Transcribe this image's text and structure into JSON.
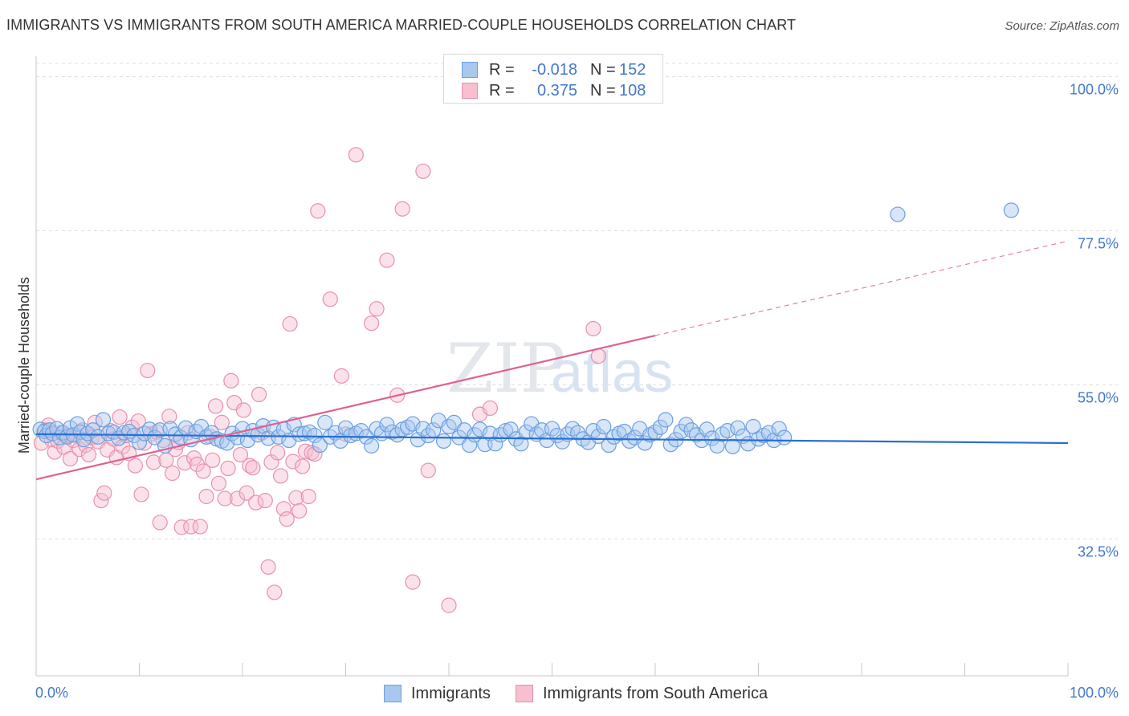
{
  "title": "IMMIGRANTS VS IMMIGRANTS FROM SOUTH AMERICA MARRIED-COUPLE HOUSEHOLDS CORRELATION CHART",
  "source": "Source: ZipAtlas.com",
  "watermark": {
    "zip": "ZIP",
    "atlas": "atlas"
  },
  "legend": {
    "r_label": "R =",
    "n_label": "N =",
    "rows": [
      {
        "r": "-0.018",
        "n": "152",
        "color": "#a8c8f0",
        "border": "#6a9fe0"
      },
      {
        "r": "0.375",
        "n": "108",
        "color": "#f7bfd0",
        "border": "#e890ac"
      }
    ]
  },
  "bottom_legend": [
    "Immigrants",
    "Immigrants from South America"
  ],
  "colors": {
    "blue_fill": "#a8c8f0",
    "blue_stroke": "#6a9fe0",
    "blue_line": "#2a6fcf",
    "pink_fill": "#f7bfd0",
    "pink_stroke": "#e890ac",
    "pink_line": "#e06090",
    "tick_text": "#4477cc",
    "grid": "#dddddd"
  },
  "chart_data": {
    "type": "scatter",
    "title": "IMMIGRANTS VS IMMIGRANTS FROM SOUTH AMERICA MARRIED-COUPLE HOUSEHOLDS CORRELATION CHART",
    "xlabel": "",
    "ylabel": "Married-couple Households",
    "xlim": [
      0,
      100
    ],
    "ylim": [
      12.5,
      103
    ],
    "x_tick_labels": [
      "0.0%",
      "100.0%"
    ],
    "y_ticks": [
      32.5,
      55.0,
      77.5,
      100.0
    ],
    "y_tick_labels": [
      "32.5%",
      "55.0%",
      "77.5%",
      "100.0%"
    ],
    "grid": true,
    "legend_placement": "top-center",
    "series": [
      {
        "name": "Immigrants",
        "r": -0.018,
        "n": 152,
        "trend": {
          "x": [
            0,
            100
          ],
          "y": [
            47.8,
            46.5
          ]
        },
        "points": [
          [
            0.4,
            48.5
          ],
          [
            0.8,
            48.2
          ],
          [
            1.0,
            47.6
          ],
          [
            1.3,
            48.4
          ],
          [
            1.6,
            47.9
          ],
          [
            2.0,
            48.6
          ],
          [
            2.3,
            47.3
          ],
          [
            2.6,
            48.0
          ],
          [
            3.0,
            47.4
          ],
          [
            3.3,
            48.7
          ],
          [
            3.6,
            47.7
          ],
          [
            4.0,
            49.3
          ],
          [
            4.3,
            48.1
          ],
          [
            4.6,
            47.0
          ],
          [
            5.0,
            47.9
          ],
          [
            5.5,
            48.4
          ],
          [
            6.0,
            47.4
          ],
          [
            6.5,
            49.9
          ],
          [
            7.0,
            47.9
          ],
          [
            7.5,
            48.1
          ],
          [
            8.0,
            47.2
          ],
          [
            8.5,
            48.0
          ],
          [
            9.0,
            48.2
          ],
          [
            9.5,
            47.6
          ],
          [
            10.0,
            46.6
          ],
          [
            10.5,
            47.9
          ],
          [
            11.0,
            48.5
          ],
          [
            11.5,
            47.3
          ],
          [
            12.0,
            48.4
          ],
          [
            12.5,
            46.1
          ],
          [
            13.0,
            48.6
          ],
          [
            13.5,
            47.8
          ],
          [
            14.0,
            47.3
          ],
          [
            14.5,
            48.7
          ],
          [
            15.0,
            47.0
          ],
          [
            15.5,
            48.2
          ],
          [
            16.0,
            48.9
          ],
          [
            16.5,
            47.4
          ],
          [
            17.0,
            48.0
          ],
          [
            17.5,
            47.1
          ],
          [
            18.0,
            46.8
          ],
          [
            18.5,
            46.5
          ],
          [
            19.0,
            47.9
          ],
          [
            19.5,
            47.3
          ],
          [
            20.0,
            48.6
          ],
          [
            20.5,
            46.9
          ],
          [
            21.0,
            48.3
          ],
          [
            21.5,
            47.7
          ],
          [
            22.0,
            49.0
          ],
          [
            22.5,
            47.2
          ],
          [
            23.0,
            48.8
          ],
          [
            23.5,
            47.4
          ],
          [
            24.0,
            48.5
          ],
          [
            24.5,
            46.9
          ],
          [
            25.0,
            49.2
          ],
          [
            25.5,
            47.8
          ],
          [
            26.0,
            47.9
          ],
          [
            26.5,
            48.1
          ],
          [
            27.0,
            47.6
          ],
          [
            27.5,
            46.2
          ],
          [
            28.0,
            49.5
          ],
          [
            28.5,
            47.4
          ],
          [
            29.0,
            48.0
          ],
          [
            29.5,
            46.8
          ],
          [
            30.0,
            48.7
          ],
          [
            30.5,
            47.6
          ],
          [
            31.0,
            47.9
          ],
          [
            31.5,
            48.3
          ],
          [
            32.0,
            47.4
          ],
          [
            32.5,
            46.1
          ],
          [
            33.0,
            48.6
          ],
          [
            33.5,
            47.9
          ],
          [
            34.0,
            49.2
          ],
          [
            34.5,
            48.1
          ],
          [
            35.0,
            47.7
          ],
          [
            35.5,
            48.5
          ],
          [
            36.0,
            48.8
          ],
          [
            36.5,
            49.3
          ],
          [
            37.0,
            47.0
          ],
          [
            37.5,
            48.6
          ],
          [
            38.0,
            47.6
          ],
          [
            38.5,
            48.4
          ],
          [
            39.0,
            49.8
          ],
          [
            39.5,
            46.8
          ],
          [
            40.0,
            48.9
          ],
          [
            40.5,
            49.5
          ],
          [
            41.0,
            47.3
          ],
          [
            41.5,
            48.4
          ],
          [
            42.0,
            46.2
          ],
          [
            42.5,
            47.7
          ],
          [
            43.0,
            48.5
          ],
          [
            43.5,
            46.3
          ],
          [
            44.0,
            47.9
          ],
          [
            44.5,
            46.4
          ],
          [
            45.0,
            47.7
          ],
          [
            45.5,
            48.3
          ],
          [
            46.0,
            48.5
          ],
          [
            46.5,
            47.1
          ],
          [
            47.0,
            46.4
          ],
          [
            47.5,
            48.1
          ],
          [
            48.0,
            49.3
          ],
          [
            48.5,
            47.8
          ],
          [
            49.0,
            48.4
          ],
          [
            49.5,
            46.9
          ],
          [
            50.0,
            48.6
          ],
          [
            50.5,
            47.6
          ],
          [
            51.0,
            46.7
          ],
          [
            51.5,
            47.8
          ],
          [
            52.0,
            48.6
          ],
          [
            52.5,
            48.0
          ],
          [
            53.0,
            47.1
          ],
          [
            53.5,
            46.6
          ],
          [
            54.0,
            48.3
          ],
          [
            54.5,
            47.5
          ],
          [
            55.0,
            48.9
          ],
          [
            55.5,
            46.2
          ],
          [
            56.0,
            47.4
          ],
          [
            56.5,
            47.9
          ],
          [
            57.0,
            48.2
          ],
          [
            57.5,
            46.8
          ],
          [
            58.0,
            47.3
          ],
          [
            58.5,
            48.6
          ],
          [
            59.0,
            46.5
          ],
          [
            59.5,
            47.7
          ],
          [
            60.0,
            48.1
          ],
          [
            60.5,
            48.8
          ],
          [
            61.0,
            49.9
          ],
          [
            61.5,
            46.3
          ],
          [
            62.0,
            47.0
          ],
          [
            62.5,
            48.2
          ],
          [
            63.0,
            49.2
          ],
          [
            63.5,
            48.4
          ],
          [
            64.0,
            47.7
          ],
          [
            64.5,
            46.9
          ],
          [
            65.0,
            48.5
          ],
          [
            65.5,
            47.2
          ],
          [
            66.0,
            46.1
          ],
          [
            66.5,
            47.8
          ],
          [
            67.0,
            48.3
          ],
          [
            67.5,
            46.0
          ],
          [
            68.0,
            48.7
          ],
          [
            68.5,
            47.5
          ],
          [
            69.0,
            46.4
          ],
          [
            69.5,
            48.9
          ],
          [
            70.0,
            47.1
          ],
          [
            70.5,
            47.6
          ],
          [
            71.0,
            48.0
          ],
          [
            71.5,
            46.9
          ],
          [
            72.0,
            48.6
          ],
          [
            72.5,
            47.3
          ],
          [
            83.5,
            79.9
          ],
          [
            94.5,
            80.5
          ]
        ]
      },
      {
        "name": "Immigrants from South America",
        "r": 0.375,
        "n": 108,
        "trend": {
          "x": [
            0,
            60
          ],
          "y": [
            41.2,
            62.2
          ]
        },
        "trend_extension": {
          "x": [
            60,
            100
          ],
          "y": [
            62.2,
            76.0
          ]
        },
        "points": [
          [
            0.5,
            46.5
          ],
          [
            0.9,
            48.4
          ],
          [
            1.2,
            49.1
          ],
          [
            1.5,
            47.0
          ],
          [
            1.8,
            45.2
          ],
          [
            2.1,
            46.8
          ],
          [
            2.4,
            48.0
          ],
          [
            2.7,
            45.9
          ],
          [
            3.0,
            47.6
          ],
          [
            3.3,
            44.2
          ],
          [
            3.6,
            46.9
          ],
          [
            3.9,
            47.7
          ],
          [
            4.2,
            45.6
          ],
          [
            4.5,
            48.4
          ],
          [
            4.8,
            46.2
          ],
          [
            5.1,
            44.8
          ],
          [
            5.4,
            47.3
          ],
          [
            5.7,
            49.5
          ],
          [
            6.0,
            46.7
          ],
          [
            6.3,
            38.1
          ],
          [
            6.6,
            39.2
          ],
          [
            6.9,
            45.5
          ],
          [
            7.2,
            48.3
          ],
          [
            7.5,
            47.1
          ],
          [
            7.8,
            44.4
          ],
          [
            8.1,
            50.3
          ],
          [
            8.4,
            46.0
          ],
          [
            8.7,
            47.6
          ],
          [
            9.0,
            45.0
          ],
          [
            9.3,
            48.8
          ],
          [
            9.6,
            43.2
          ],
          [
            9.9,
            49.7
          ],
          [
            10.2,
            39.0
          ],
          [
            10.5,
            46.5
          ],
          [
            10.8,
            57.1
          ],
          [
            11.1,
            47.8
          ],
          [
            11.4,
            43.7
          ],
          [
            11.7,
            48.1
          ],
          [
            12.0,
            34.9
          ],
          [
            12.3,
            46.9
          ],
          [
            12.6,
            44.0
          ],
          [
            12.9,
            50.4
          ],
          [
            13.2,
            42.1
          ],
          [
            13.5,
            45.6
          ],
          [
            13.8,
            46.6
          ],
          [
            14.1,
            34.2
          ],
          [
            14.4,
            43.6
          ],
          [
            14.7,
            48.0
          ],
          [
            15.0,
            34.3
          ],
          [
            15.3,
            44.3
          ],
          [
            15.6,
            43.4
          ],
          [
            15.9,
            34.3
          ],
          [
            16.2,
            42.4
          ],
          [
            16.5,
            38.7
          ],
          [
            16.8,
            47.5
          ],
          [
            17.1,
            44.0
          ],
          [
            17.4,
            51.9
          ],
          [
            17.7,
            40.6
          ],
          [
            18.0,
            49.5
          ],
          [
            18.3,
            38.4
          ],
          [
            18.6,
            42.8
          ],
          [
            18.9,
            55.6
          ],
          [
            19.2,
            52.4
          ],
          [
            19.5,
            38.4
          ],
          [
            19.8,
            44.8
          ],
          [
            20.1,
            51.3
          ],
          [
            20.4,
            39.2
          ],
          [
            20.7,
            43.2
          ],
          [
            21.0,
            42.9
          ],
          [
            21.3,
            37.8
          ],
          [
            21.6,
            53.6
          ],
          [
            21.9,
            48.0
          ],
          [
            22.2,
            38.1
          ],
          [
            22.5,
            28.4
          ],
          [
            22.8,
            43.7
          ],
          [
            23.1,
            24.7
          ],
          [
            23.4,
            45.1
          ],
          [
            23.7,
            41.7
          ],
          [
            24.0,
            36.9
          ],
          [
            24.3,
            35.4
          ],
          [
            24.6,
            63.9
          ],
          [
            24.9,
            43.8
          ],
          [
            25.2,
            38.5
          ],
          [
            25.5,
            36.6
          ],
          [
            25.8,
            43.1
          ],
          [
            26.1,
            45.3
          ],
          [
            26.4,
            38.7
          ],
          [
            26.7,
            45.1
          ],
          [
            27.0,
            44.9
          ],
          [
            27.3,
            80.4
          ],
          [
            28.5,
            67.5
          ],
          [
            29.6,
            56.3
          ],
          [
            30.0,
            47.8
          ],
          [
            31.0,
            88.6
          ],
          [
            32.5,
            64.0
          ],
          [
            33.0,
            66.1
          ],
          [
            34.0,
            73.2
          ],
          [
            35.0,
            53.5
          ],
          [
            35.5,
            80.7
          ],
          [
            36.5,
            26.2
          ],
          [
            37.5,
            86.2
          ],
          [
            38.0,
            42.5
          ],
          [
            40.0,
            22.8
          ],
          [
            43.0,
            50.7
          ],
          [
            44.0,
            51.6
          ],
          [
            54.0,
            63.2
          ],
          [
            54.5,
            59.2
          ],
          [
            59.8,
            100.2
          ]
        ]
      }
    ]
  }
}
